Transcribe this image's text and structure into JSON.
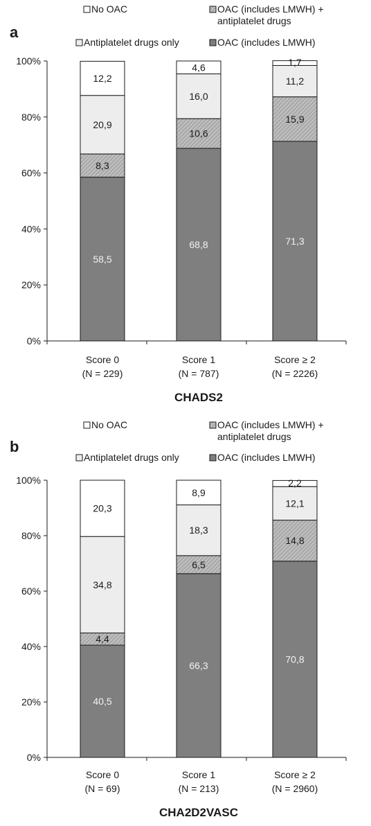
{
  "panels": [
    {
      "panel_label": "a",
      "legend": [
        "No OAC",
        "OAC (includes LMWH) +",
        "antiplatelet drugs",
        "Antiplatelet drugs only",
        "OAC (includes LMWH)"
      ],
      "chart_data": {
        "type": "bar",
        "stacked": true,
        "categories": [
          "Score 0",
          "Score 1",
          "Score ≥ 2"
        ],
        "category_counts": [
          "(N = 229)",
          "(N = 787)",
          "(N = 2226)"
        ],
        "series": [
          {
            "name": "OAC (includes LMWH)",
            "values": [
              58.5,
              68.8,
              71.3
            ],
            "labels": [
              "58,5",
              "68,8",
              "71,3"
            ]
          },
          {
            "name": "OAC (includes LMWH) + antiplatelet drugs",
            "values": [
              8.3,
              10.6,
              15.9
            ],
            "labels": [
              "8,3",
              "10,6",
              "15,9"
            ]
          },
          {
            "name": "Antiplatelet drugs only",
            "values": [
              20.9,
              16.0,
              11.2
            ],
            "labels": [
              "20,9",
              "16,0",
              "11,2"
            ]
          },
          {
            "name": "No OAC",
            "values": [
              12.2,
              4.6,
              1.7
            ],
            "labels": [
              "12,2",
              "4,6",
              "1,7"
            ]
          }
        ],
        "ytick_labels": [
          "0%",
          "20%",
          "40%",
          "60%",
          "80%",
          "100%"
        ],
        "ylim": [
          0,
          100
        ],
        "xlabel": "CHADS2",
        "ylabel": "",
        "grid": false,
        "legend_position": "top"
      }
    },
    {
      "panel_label": "b",
      "legend": [
        "No OAC",
        "OAC (includes LMWH) +",
        "antiplatelet drugs",
        "Antiplatelet drugs only",
        "OAC (includes LMWH)"
      ],
      "chart_data": {
        "type": "bar",
        "stacked": true,
        "categories": [
          "Score 0",
          "Score 1",
          "Score ≥ 2"
        ],
        "category_counts": [
          "(N = 69)",
          "(N = 213)",
          "(N = 2960)"
        ],
        "series": [
          {
            "name": "OAC (includes LMWH)",
            "values": [
              40.5,
              66.3,
              70.8
            ],
            "labels": [
              "40,5",
              "66,3",
              "70,8"
            ]
          },
          {
            "name": "OAC (includes LMWH) + antiplatelet drugs",
            "values": [
              4.4,
              6.5,
              14.8
            ],
            "labels": [
              "4,4",
              "6,5",
              "14,8"
            ]
          },
          {
            "name": "Antiplatelet drugs only",
            "values": [
              34.8,
              18.3,
              12.1
            ],
            "labels": [
              "34,8",
              "18,3",
              "12,1"
            ]
          },
          {
            "name": "No OAC",
            "values": [
              20.3,
              8.9,
              2.2
            ],
            "labels": [
              "20,3",
              "8,9",
              "2,2"
            ]
          }
        ],
        "ytick_labels": [
          "0%",
          "20%",
          "40%",
          "60%",
          "80%",
          "100%"
        ],
        "ylim": [
          0,
          100
        ],
        "xlabel": "CHA2D2VASC",
        "ylabel": "",
        "grid": false,
        "legend_position": "top"
      }
    }
  ],
  "colors": {
    "oac": "#7f7f7f",
    "oac_plus_antiplatelet": "#bdbdbd",
    "antiplatelet_only": "#ededed",
    "no_oac": "#ffffff",
    "outline": "#1a1a1a",
    "value_label_dark_segment": "#f2f2f2"
  }
}
